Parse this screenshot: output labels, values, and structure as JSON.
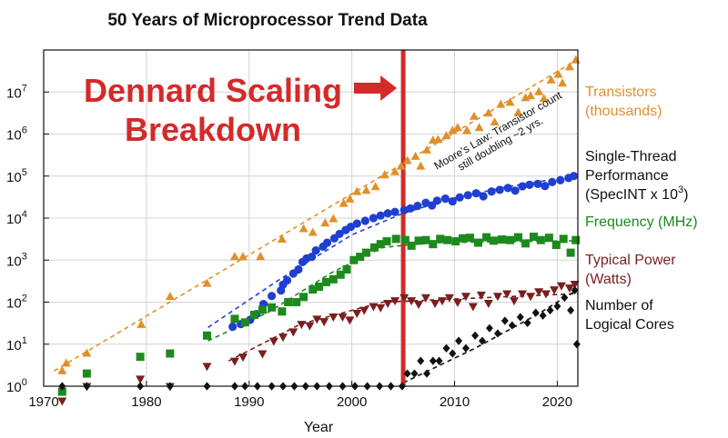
{
  "chart_data": {
    "type": "scatter",
    "title": "50 Years of Microprocessor Trend Data",
    "xlabel": "Year",
    "ylabel": "",
    "xlim": [
      1970,
      2022
    ],
    "ylim": [
      1,
      100000000
    ],
    "yscale": "log",
    "grid": true,
    "legend_placement": "right",
    "x_ticks": [
      1970,
      1980,
      1990,
      2000,
      2010,
      2020
    ],
    "y_ticks": [
      {
        "value": 1,
        "label_base": "10",
        "label_exp": "0"
      },
      {
        "value": 10,
        "label_base": "10",
        "label_exp": "1"
      },
      {
        "value": 100,
        "label_base": "10",
        "label_exp": "2"
      },
      {
        "value": 1000,
        "label_base": "10",
        "label_exp": "3"
      },
      {
        "value": 10000,
        "label_base": "10",
        "label_exp": "4"
      },
      {
        "value": 100000,
        "label_base": "10",
        "label_exp": "5"
      },
      {
        "value": 1000000,
        "label_base": "10",
        "label_exp": "6"
      },
      {
        "value": 10000000,
        "label_base": "10",
        "label_exp": "7"
      }
    ],
    "vertical_marker": {
      "x": 2005,
      "color": "#d42a2a"
    },
    "callout": {
      "line1": "Dennard Scaling",
      "line2": "Breakdown",
      "color": "#d42a2a"
    },
    "moore_annotation": {
      "line1": "Moore's Law: Transistor count",
      "line2": "still doubling ~2 yrs."
    },
    "trend_lines": [
      {
        "series": "transistors",
        "color": "#e0902a",
        "points": [
          [
            1971,
            2.3
          ],
          [
            2022,
            60000000
          ]
        ]
      },
      {
        "series": "single_thread",
        "color": "#1f3fd0",
        "points": [
          [
            1986,
            25
          ],
          [
            1993,
            350
          ],
          [
            2000,
            4000
          ],
          [
            2005,
            13000
          ],
          [
            2010,
            30000
          ],
          [
            2015,
            55000
          ],
          [
            2021,
            95000
          ]
        ]
      },
      {
        "series": "frequency",
        "color": "#1d8a1d",
        "points": [
          [
            1986,
            12
          ],
          [
            1992,
            60
          ],
          [
            1998,
            500
          ],
          [
            2003,
            2000
          ],
          [
            2008,
            2600
          ],
          [
            2022,
            2900
          ]
        ]
      },
      {
        "series": "power",
        "color": "#7a1e1e",
        "points": [
          [
            1988,
            4
          ],
          [
            1995,
            30
          ],
          [
            2003,
            100
          ],
          [
            2022,
            160
          ]
        ]
      },
      {
        "series": "cores",
        "color": "#111111",
        "points": [
          [
            2005,
            1.2
          ],
          [
            2012,
            8
          ],
          [
            2018,
            50
          ],
          [
            2022,
            200
          ]
        ]
      }
    ],
    "series": [
      {
        "id": "transistors",
        "name": "Transistors\n(thousands)",
        "name_lines": [
          "Transistors",
          "(thousands)"
        ],
        "color": "#e0902a",
        "marker": "triangle",
        "points": [
          [
            1971.8,
            2.3
          ],
          [
            1972.2,
            3.5
          ],
          [
            1974.2,
            6
          ],
          [
            1979.5,
            29
          ],
          [
            1982.3,
            134
          ],
          [
            1985.9,
            275
          ],
          [
            1988.6,
            1200
          ],
          [
            1989.4,
            1180
          ],
          [
            1991.1,
            1200
          ],
          [
            1993.2,
            3100
          ],
          [
            1995.3,
            5500
          ],
          [
            1996.2,
            4500
          ],
          [
            1997.4,
            7500
          ],
          [
            1998.2,
            9500
          ],
          [
            1999.2,
            22000
          ],
          [
            1999.8,
            28000
          ],
          [
            2000.5,
            42000
          ],
          [
            2001.4,
            45000
          ],
          [
            2002.3,
            55000
          ],
          [
            2003.2,
            105000
          ],
          [
            2004.2,
            125000
          ],
          [
            2004.8,
            170000
          ],
          [
            2005.4,
            230000
          ],
          [
            2006.2,
            290000
          ],
          [
            2006.7,
            170000
          ],
          [
            2007.3,
            410000
          ],
          [
            2007.9,
            700000
          ],
          [
            2008.4,
            730000
          ],
          [
            2009.2,
            900000
          ],
          [
            2009.8,
            1200000
          ],
          [
            2010.3,
            1400000
          ],
          [
            2011.2,
            1200000
          ],
          [
            2011.9,
            2600000
          ],
          [
            2012.4,
            1400000
          ],
          [
            2013.3,
            3100000
          ],
          [
            2013.9,
            1900000
          ],
          [
            2014.5,
            5000000
          ],
          [
            2015.4,
            5600000
          ],
          [
            2016.2,
            3200000
          ],
          [
            2016.9,
            7200000
          ],
          [
            2017.4,
            8000000
          ],
          [
            2018.2,
            10000000
          ],
          [
            2018.7,
            6900000
          ],
          [
            2019.4,
            19000000
          ],
          [
            2020.1,
            26000000
          ],
          [
            2020.5,
            16000000
          ],
          [
            2021.2,
            39000000
          ],
          [
            2021.8,
            57000000
          ]
        ]
      },
      {
        "id": "single_thread",
        "name": "Single-Thread\nPerformance\n(SpecINT x 10^3)",
        "name_lines": [
          "Single-Thread",
          "Performance",
          "(SpecINT x 10",
          "3",
          ")"
        ],
        "color": "#1f3fd0",
        "marker": "circle",
        "points": [
          [
            1988.4,
            26
          ],
          [
            1989.2,
            30
          ],
          [
            1990.1,
            38
          ],
          [
            1990.7,
            52
          ],
          [
            1991.4,
            90
          ],
          [
            1992.2,
            140
          ],
          [
            1993.1,
            190
          ],
          [
            1993.3,
            260
          ],
          [
            1993.7,
            330
          ],
          [
            1994.3,
            480
          ],
          [
            1994.8,
            600
          ],
          [
            1995.2,
            900
          ],
          [
            1995.6,
            1100
          ],
          [
            1996.1,
            1200
          ],
          [
            1996.5,
            1700
          ],
          [
            1997.2,
            2100
          ],
          [
            1997.6,
            2600
          ],
          [
            1998.3,
            3300
          ],
          [
            1998.8,
            4200
          ],
          [
            1999.4,
            5200
          ],
          [
            1999.9,
            6200
          ],
          [
            2000.5,
            7400
          ],
          [
            2001.3,
            8600
          ],
          [
            2002.1,
            10000
          ],
          [
            2002.8,
            11500
          ],
          [
            2003.5,
            13000
          ],
          [
            2004.2,
            14000
          ],
          [
            2005.1,
            15500
          ],
          [
            2005.7,
            17000
          ],
          [
            2006.4,
            19500
          ],
          [
            2007.2,
            23000
          ],
          [
            2007.8,
            20000
          ],
          [
            2008.3,
            26000
          ],
          [
            2009.1,
            29000
          ],
          [
            2009.8,
            25000
          ],
          [
            2010.5,
            31000
          ],
          [
            2011.3,
            35000
          ],
          [
            2012.1,
            39000
          ],
          [
            2012.8,
            33000
          ],
          [
            2013.6,
            43000
          ],
          [
            2014.4,
            47000
          ],
          [
            2015.2,
            52000
          ],
          [
            2015.9,
            45000
          ],
          [
            2016.6,
            57000
          ],
          [
            2017.3,
            62000
          ],
          [
            2018.1,
            65000
          ],
          [
            2018.8,
            58000
          ],
          [
            2019.5,
            72000
          ],
          [
            2020.3,
            80000
          ],
          [
            2021.1,
            90000
          ],
          [
            2021.6,
            100000
          ]
        ]
      },
      {
        "id": "frequency",
        "name": "Frequency (MHz)",
        "name_lines": [
          "Frequency (MHz)"
        ],
        "color": "#1d8a1d",
        "marker": "square",
        "points": [
          [
            1971.8,
            0.74
          ],
          [
            1974.2,
            2
          ],
          [
            1979.4,
            5
          ],
          [
            1982.3,
            6
          ],
          [
            1985.9,
            16
          ],
          [
            1988.6,
            40
          ],
          [
            1989.6,
            33
          ],
          [
            1990.5,
            50
          ],
          [
            1991.3,
            66
          ],
          [
            1992.2,
            75
          ],
          [
            1993.2,
            60
          ],
          [
            1993.8,
            100
          ],
          [
            1994.6,
            100
          ],
          [
            1995.3,
            133
          ],
          [
            1996.2,
            200
          ],
          [
            1996.8,
            233
          ],
          [
            1997.5,
            300
          ],
          [
            1998.2,
            350
          ],
          [
            1998.9,
            450
          ],
          [
            1999.5,
            600
          ],
          [
            2000.2,
            1000
          ],
          [
            2000.8,
            1200
          ],
          [
            2001.4,
            1500
          ],
          [
            2002.2,
            2000
          ],
          [
            2002.8,
            2400
          ],
          [
            2003.4,
            2800
          ],
          [
            2004.3,
            3200
          ],
          [
            2005.2,
            3000
          ],
          [
            2005.8,
            2200
          ],
          [
            2006.5,
            2900
          ],
          [
            2007.2,
            3000
          ],
          [
            2007.9,
            2400
          ],
          [
            2008.6,
            3200
          ],
          [
            2009.3,
            3000
          ],
          [
            2010.1,
            2800
          ],
          [
            2010.8,
            3300
          ],
          [
            2011.5,
            3400
          ],
          [
            2012.3,
            2600
          ],
          [
            2013.1,
            3500
          ],
          [
            2013.8,
            2900
          ],
          [
            2014.6,
            3100
          ],
          [
            2015.4,
            3000
          ],
          [
            2016.2,
            3500
          ],
          [
            2016.9,
            2500
          ],
          [
            2017.7,
            3600
          ],
          [
            2018.4,
            3000
          ],
          [
            2019.2,
            3400
          ],
          [
            2019.9,
            2300
          ],
          [
            2020.6,
            3200
          ],
          [
            2021.3,
            1500
          ],
          [
            2021.8,
            3000
          ]
        ]
      },
      {
        "id": "power",
        "name": "Typical Power\n(Watts)",
        "name_lines": [
          "Typical Power",
          "(Watts)"
        ],
        "color": "#7a1e1e",
        "marker": "triangle-down",
        "points": [
          [
            1971.8,
            0.45
          ],
          [
            1974.2,
            1
          ],
          [
            1979.4,
            1.5
          ],
          [
            1982.3,
            1
          ],
          [
            1985.9,
            3
          ],
          [
            1988.6,
            4
          ],
          [
            1989.4,
            5
          ],
          [
            1991.3,
            6
          ],
          [
            1992.4,
            12
          ],
          [
            1993.3,
            15
          ],
          [
            1994.3,
            20
          ],
          [
            1995.1,
            30
          ],
          [
            1995.9,
            28
          ],
          [
            1996.6,
            40
          ],
          [
            1997.3,
            35
          ],
          [
            1998.2,
            45
          ],
          [
            1999.1,
            45
          ],
          [
            1999.8,
            38
          ],
          [
            2000.5,
            55
          ],
          [
            2001.2,
            65
          ],
          [
            2002.1,
            80
          ],
          [
            2002.8,
            75
          ],
          [
            2003.5,
            95
          ],
          [
            2004.2,
            110
          ],
          [
            2005.1,
            130
          ],
          [
            2005.8,
            110
          ],
          [
            2006.5,
            90
          ],
          [
            2007.2,
            130
          ],
          [
            2008.1,
            95
          ],
          [
            2008.8,
            110
          ],
          [
            2009.5,
            130
          ],
          [
            2010.3,
            100
          ],
          [
            2011.1,
            140
          ],
          [
            2011.8,
            80
          ],
          [
            2012.6,
            150
          ],
          [
            2013.3,
            95
          ],
          [
            2014.2,
            140
          ],
          [
            2015.1,
            160
          ],
          [
            2015.8,
            110
          ],
          [
            2016.6,
            160
          ],
          [
            2017.4,
            140
          ],
          [
            2018.2,
            180
          ],
          [
            2018.9,
            160
          ],
          [
            2019.7,
            200
          ],
          [
            2020.4,
            250
          ],
          [
            2021.2,
            220
          ],
          [
            2021.7,
            270
          ]
        ]
      },
      {
        "id": "cores",
        "name": "Number of\nLogical Cores",
        "name_lines": [
          "Number of",
          "Logical Cores"
        ],
        "color": "#111111",
        "marker": "diamond",
        "points": [
          [
            1971.8,
            1
          ],
          [
            1974.2,
            1
          ],
          [
            1979.4,
            1
          ],
          [
            1982.3,
            1
          ],
          [
            1985.9,
            1
          ],
          [
            1988.6,
            1
          ],
          [
            1989.6,
            1
          ],
          [
            1990.8,
            1
          ],
          [
            1992.2,
            1
          ],
          [
            1993.3,
            1
          ],
          [
            1994.4,
            1
          ],
          [
            1995.5,
            1
          ],
          [
            1996.6,
            1
          ],
          [
            1997.8,
            1
          ],
          [
            1999.1,
            1
          ],
          [
            2000.3,
            1
          ],
          [
            2001.5,
            1
          ],
          [
            2002.7,
            1
          ],
          [
            2003.8,
            1
          ],
          [
            2004.9,
            1
          ],
          [
            2005.4,
            2
          ],
          [
            2006.1,
            2
          ],
          [
            2006.7,
            4
          ],
          [
            2007.3,
            2
          ],
          [
            2007.9,
            4
          ],
          [
            2008.5,
            4
          ],
          [
            2009.2,
            8
          ],
          [
            2009.8,
            6
          ],
          [
            2010.4,
            12
          ],
          [
            2011.1,
            8
          ],
          [
            2012.0,
            16
          ],
          [
            2012.7,
            12
          ],
          [
            2013.4,
            24
          ],
          [
            2014.2,
            18
          ],
          [
            2014.9,
            36
          ],
          [
            2015.6,
            28
          ],
          [
            2016.4,
            44
          ],
          [
            2017.1,
            32
          ],
          [
            2017.9,
            56
          ],
          [
            2018.6,
            48
          ],
          [
            2019.3,
            64
          ],
          [
            2020.0,
            80
          ],
          [
            2020.7,
            128
          ],
          [
            2021.3,
            64
          ],
          [
            2021.7,
            192
          ],
          [
            2021.9,
            10
          ]
        ]
      }
    ]
  }
}
